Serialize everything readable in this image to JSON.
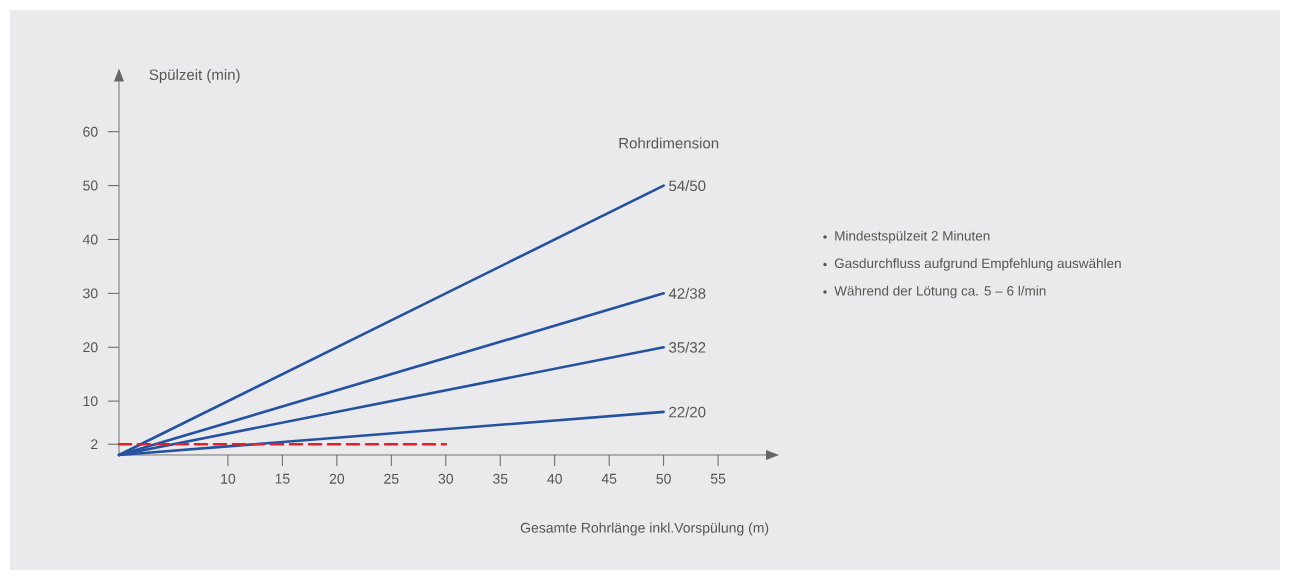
{
  "chart_data": {
    "type": "line",
    "xlabel": "Gesamte Rohrlänge inkl.Vorspülung (m)",
    "ylabel": "Spülzeit (min)",
    "legend_title": "Rohrdimension",
    "xlim": [
      0,
      59.4
    ],
    "ylim": [
      0,
      69.3
    ],
    "xticks": [
      10,
      15,
      20,
      25,
      30,
      35,
      40,
      45,
      50,
      55
    ],
    "yticks": [
      2,
      10,
      20,
      30,
      40,
      50,
      60
    ],
    "series": [
      {
        "name": "54/50",
        "color": "#2452a0",
        "x": [
          0,
          50
        ],
        "values": [
          0,
          50
        ]
      },
      {
        "name": "42/38",
        "color": "#2452a0",
        "x": [
          0,
          50
        ],
        "values": [
          0,
          30
        ]
      },
      {
        "name": "35/32",
        "color": "#2452a0",
        "x": [
          0,
          50
        ],
        "values": [
          0,
          20
        ]
      },
      {
        "name": "22/20",
        "color": "#2452a0",
        "x": [
          0,
          50
        ],
        "values": [
          0,
          8
        ]
      },
      {
        "color": "#e0202a",
        "line_style": "dashed",
        "x": [
          0,
          30
        ],
        "values": [
          2,
          2
        ]
      }
    ],
    "annotations": [
      "Mindestspülzeit 2 Minuten",
      "Gasdurchfluss aufgrund Empfehlung auswählen",
      "Während der Lötung ca. 5 – 6 l/min"
    ]
  }
}
